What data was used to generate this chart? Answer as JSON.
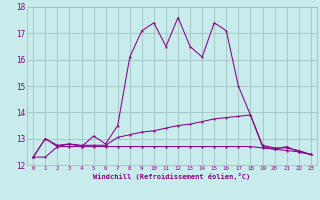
{
  "xlabel": "Windchill (Refroidissement éolien,°C)",
  "x_values": [
    0,
    1,
    2,
    3,
    4,
    5,
    6,
    7,
    8,
    9,
    10,
    11,
    12,
    13,
    14,
    15,
    16,
    17,
    18,
    19,
    20,
    21,
    22,
    23
  ],
  "line1": [
    12.3,
    13.0,
    12.7,
    12.8,
    12.7,
    13.1,
    12.8,
    13.5,
    16.1,
    17.1,
    17.4,
    16.5,
    17.6,
    16.5,
    16.1,
    17.4,
    17.1,
    15.0,
    13.9,
    12.7,
    12.6,
    12.7,
    12.5,
    12.4
  ],
  "line2": [
    12.3,
    13.0,
    12.75,
    12.8,
    12.75,
    12.75,
    12.75,
    13.05,
    13.15,
    13.25,
    13.3,
    13.4,
    13.5,
    13.55,
    13.65,
    13.75,
    13.8,
    13.85,
    13.9,
    12.75,
    12.65,
    12.65,
    12.55,
    12.4
  ],
  "line3": [
    12.3,
    12.3,
    12.7,
    12.7,
    12.7,
    12.7,
    12.7,
    12.7,
    12.7,
    12.7,
    12.7,
    12.7,
    12.7,
    12.7,
    12.7,
    12.7,
    12.7,
    12.7,
    12.7,
    12.65,
    12.6,
    12.55,
    12.5,
    12.4
  ],
  "line_color": "#880088",
  "bg_color": "#c8ecec",
  "grid_color": "#99bbbb",
  "ylim": [
    12.0,
    18.0
  ],
  "yticks": [
    12,
    13,
    14,
    15,
    16,
    17,
    18
  ],
  "xlim": [
    -0.5,
    23.5
  ]
}
